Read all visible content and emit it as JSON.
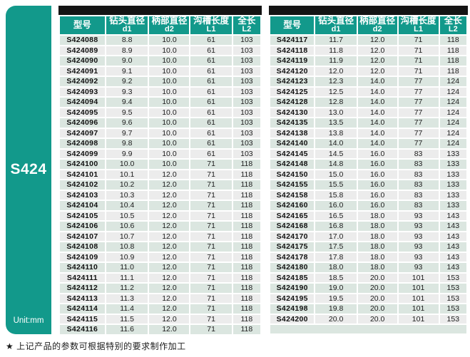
{
  "page": {
    "series_label": "S424",
    "unit_label": "Unit:mm",
    "footnote": "★ 上记产品的参数可根据特别的要求制作加工"
  },
  "colors": {
    "teal": "#12998b",
    "top_bar": "#141414",
    "row_green": "#dbe6e0",
    "row_gray": "#ececec",
    "header_text": "#ffffff",
    "cell_text": "#1b1b1b"
  },
  "columns": [
    {
      "title": "型号",
      "sub": ""
    },
    {
      "title": "钻头直径",
      "sub": "d1"
    },
    {
      "title": "柄部直径",
      "sub": "d2"
    },
    {
      "title": "沟槽长度",
      "sub": "L1"
    },
    {
      "title": "全长",
      "sub": "L2"
    }
  ],
  "tables": {
    "left": {
      "rows": [
        [
          "S424088",
          "8.8",
          "10.0",
          "61",
          "103"
        ],
        [
          "S424089",
          "8.9",
          "10.0",
          "61",
          "103"
        ],
        [
          "S424090",
          "9.0",
          "10.0",
          "61",
          "103"
        ],
        [
          "S424091",
          "9.1",
          "10.0",
          "61",
          "103"
        ],
        [
          "S424092",
          "9.2",
          "10.0",
          "61",
          "103"
        ],
        [
          "S424093",
          "9.3",
          "10.0",
          "61",
          "103"
        ],
        [
          "S424094",
          "9.4",
          "10.0",
          "61",
          "103"
        ],
        [
          "S424095",
          "9.5",
          "10.0",
          "61",
          "103"
        ],
        [
          "S424096",
          "9.6",
          "10.0",
          "61",
          "103"
        ],
        [
          "S424097",
          "9.7",
          "10.0",
          "61",
          "103"
        ],
        [
          "S424098",
          "9.8",
          "10.0",
          "61",
          "103"
        ],
        [
          "S424099",
          "9.9",
          "10.0",
          "61",
          "103"
        ],
        [
          "S424100",
          "10.0",
          "10.0",
          "71",
          "118"
        ],
        [
          "S424101",
          "10.1",
          "12.0",
          "71",
          "118"
        ],
        [
          "S424102",
          "10.2",
          "12.0",
          "71",
          "118"
        ],
        [
          "S424103",
          "10.3",
          "12.0",
          "71",
          "118"
        ],
        [
          "S424104",
          "10.4",
          "12.0",
          "71",
          "118"
        ],
        [
          "S424105",
          "10.5",
          "12.0",
          "71",
          "118"
        ],
        [
          "S424106",
          "10.6",
          "12.0",
          "71",
          "118"
        ],
        [
          "S424107",
          "10.7",
          "12.0",
          "71",
          "118"
        ],
        [
          "S424108",
          "10.8",
          "12.0",
          "71",
          "118"
        ],
        [
          "S424109",
          "10.9",
          "12.0",
          "71",
          "118"
        ],
        [
          "S424110",
          "11.0",
          "12.0",
          "71",
          "118"
        ],
        [
          "S424111",
          "11.1",
          "12.0",
          "71",
          "118"
        ],
        [
          "S424112",
          "11.2",
          "12.0",
          "71",
          "118"
        ],
        [
          "S424113",
          "11.3",
          "12.0",
          "71",
          "118"
        ],
        [
          "S424114",
          "11.4",
          "12.0",
          "71",
          "118"
        ],
        [
          "S424115",
          "11.5",
          "12.0",
          "71",
          "118"
        ],
        [
          "S424116",
          "11.6",
          "12.0",
          "71",
          "118"
        ]
      ]
    },
    "right": {
      "rows": [
        [
          "S424117",
          "11.7",
          "12.0",
          "71",
          "118"
        ],
        [
          "S424118",
          "11.8",
          "12.0",
          "71",
          "118"
        ],
        [
          "S424119",
          "11.9",
          "12.0",
          "71",
          "118"
        ],
        [
          "S424120",
          "12.0",
          "12.0",
          "71",
          "118"
        ],
        [
          "S424123",
          "12.3",
          "14.0",
          "77",
          "124"
        ],
        [
          "S424125",
          "12.5",
          "14.0",
          "77",
          "124"
        ],
        [
          "S424128",
          "12.8",
          "14.0",
          "77",
          "124"
        ],
        [
          "S424130",
          "13.0",
          "14.0",
          "77",
          "124"
        ],
        [
          "S424135",
          "13.5",
          "14.0",
          "77",
          "124"
        ],
        [
          "S424138",
          "13.8",
          "14.0",
          "77",
          "124"
        ],
        [
          "S424140",
          "14.0",
          "14.0",
          "77",
          "124"
        ],
        [
          "S424145",
          "14.5",
          "16.0",
          "83",
          "133"
        ],
        [
          "S424148",
          "14.8",
          "16.0",
          "83",
          "133"
        ],
        [
          "S424150",
          "15.0",
          "16.0",
          "83",
          "133"
        ],
        [
          "S424155",
          "15.5",
          "16.0",
          "83",
          "133"
        ],
        [
          "S424158",
          "15.8",
          "16.0",
          "83",
          "133"
        ],
        [
          "S424160",
          "16.0",
          "16.0",
          "83",
          "133"
        ],
        [
          "S424165",
          "16.5",
          "18.0",
          "93",
          "143"
        ],
        [
          "S424168",
          "16.8",
          "18.0",
          "93",
          "143"
        ],
        [
          "S424170",
          "17.0",
          "18.0",
          "93",
          "143"
        ],
        [
          "S424175",
          "17.5",
          "18.0",
          "93",
          "143"
        ],
        [
          "S424178",
          "17.8",
          "18.0",
          "93",
          "143"
        ],
        [
          "S424180",
          "18.0",
          "18.0",
          "93",
          "143"
        ],
        [
          "S424185",
          "18.5",
          "20.0",
          "101",
          "153"
        ],
        [
          "S424190",
          "19.0",
          "20.0",
          "101",
          "153"
        ],
        [
          "S424195",
          "19.5",
          "20.0",
          "101",
          "153"
        ],
        [
          "S424198",
          "19.8",
          "20.0",
          "101",
          "153"
        ],
        [
          "S424200",
          "20.0",
          "20.0",
          "101",
          "153"
        ]
      ]
    }
  }
}
